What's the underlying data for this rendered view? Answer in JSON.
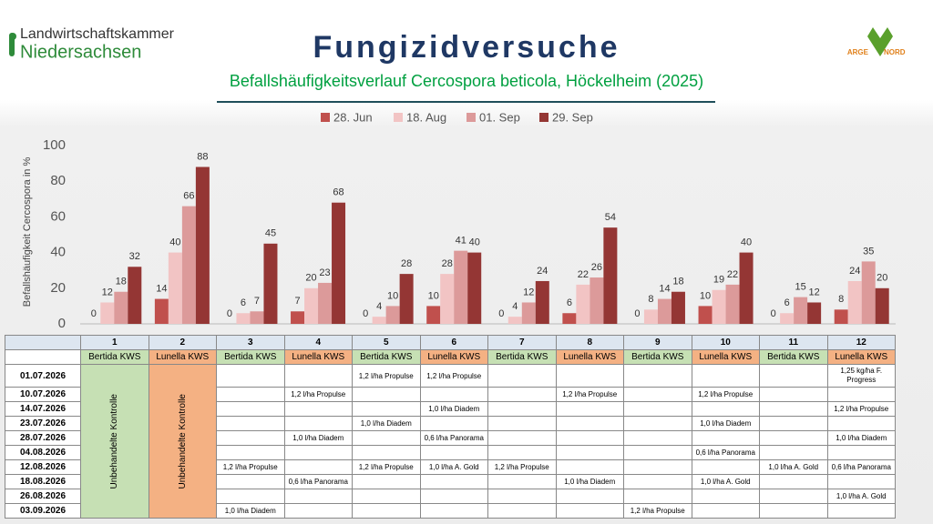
{
  "header": {
    "org_line1": "Landwirtschaftskammer",
    "org_line2": "Niedersachsen",
    "partner_line1": "ARGE",
    "partner_line2": "NORD"
  },
  "chart_data": {
    "type": "bar",
    "title": "Fungizidversuche",
    "subtitle": "Befallshäufigkeitsverlauf Cercospora beticola, Höckelheim (2025)",
    "y_label": "Befallshäufigkeit Cercospora in %",
    "categories": [
      "1",
      "2",
      "3",
      "4",
      "5",
      "6",
      "7",
      "8",
      "9",
      "10",
      "11",
      "12"
    ],
    "series": [
      {
        "name": "28. Jun",
        "color": "#c0504d",
        "values": [
          0,
          14,
          0,
          7,
          0,
          10,
          0,
          6,
          0,
          10,
          0,
          8
        ]
      },
      {
        "name": "18. Aug",
        "color": "#f2c4c4",
        "values": [
          12,
          40,
          6,
          20,
          4,
          28,
          4,
          22,
          8,
          19,
          6,
          24
        ]
      },
      {
        "name": "01. Sep",
        "color": "#dc9a9a",
        "values": [
          18,
          66,
          7,
          23,
          10,
          41,
          12,
          26,
          14,
          22,
          15,
          35
        ]
      },
      {
        "name": "29. Sep",
        "color": "#943634",
        "values": [
          32,
          88,
          45,
          68,
          28,
          40,
          24,
          54,
          18,
          40,
          12,
          20
        ]
      }
    ],
    "ylim": [
      0,
      100
    ],
    "yticks": [
      0,
      20,
      40,
      60,
      80,
      100
    ],
    "grid": false,
    "legend": "top"
  },
  "table": {
    "varieties": [
      "Bertida KWS",
      "Lunella KWS",
      "Bertida KWS",
      "Lunella KWS",
      "Bertida KWS",
      "Lunella KWS",
      "Bertida KWS",
      "Lunella KWS",
      "Bertida KWS",
      "Lunella KWS",
      "Bertida KWS",
      "Lunella KWS"
    ],
    "control": [
      "Unbehandelte Kontrolle",
      "Unbehandelte Kontrolle"
    ],
    "rows": [
      {
        "date": "01.07.2026",
        "cells": [
          null,
          null,
          "1,2 l/ha Propulse",
          "1,2 l/ha Propulse",
          null,
          null,
          null,
          null,
          null,
          "1,25 kg/ha F. Progress"
        ]
      },
      {
        "date": "10.07.2026",
        "cells": [
          null,
          "1,2 l/ha Propulse",
          null,
          null,
          null,
          "1,2 l/ha Propulse",
          null,
          "1,2 l/ha Propulse",
          null,
          null
        ]
      },
      {
        "date": "14.07.2026",
        "cells": [
          null,
          null,
          null,
          "1,0 l/ha Diadem",
          null,
          null,
          null,
          null,
          null,
          "1,2 l/ha Propulse"
        ]
      },
      {
        "date": "23.07.2026",
        "cells": [
          null,
          null,
          "1,0 l/ha Diadem",
          null,
          null,
          null,
          null,
          "1,0 l/ha Diadem",
          null,
          null
        ]
      },
      {
        "date": "28.07.2026",
        "cells": [
          null,
          "1,0 l/ha Diadem",
          null,
          "0,6 l/ha Panorama",
          null,
          null,
          null,
          null,
          null,
          "1,0 l/ha Diadem"
        ]
      },
      {
        "date": "04.08.2026",
        "cells": [
          null,
          null,
          null,
          null,
          null,
          null,
          null,
          "0,6 l/ha Panorama",
          null,
          null
        ]
      },
      {
        "date": "12.08.2026",
        "cells": [
          "1,2 l/ha Propulse",
          null,
          "1,2 l/ha Propulse",
          "1,0 l/ha A. Gold",
          "1,2 l/ha Propulse",
          null,
          null,
          null,
          "1,0 l/ha A. Gold",
          "0,6 l/ha Panorama"
        ]
      },
      {
        "date": "18.08.2026",
        "cells": [
          null,
          "0,6 l/ha Panorama",
          null,
          null,
          null,
          "1,0 l/ha Diadem",
          null,
          "1,0 l/ha A. Gold",
          null,
          null
        ]
      },
      {
        "date": "26.08.2026",
        "cells": [
          null,
          null,
          null,
          null,
          null,
          null,
          null,
          null,
          null,
          "1,0 l/ha A. Gold"
        ]
      },
      {
        "date": "03.09.2026",
        "cells": [
          "1,0 l/ha Diadem",
          null,
          null,
          null,
          null,
          null,
          "1,2 l/ha Propulse",
          null,
          null,
          null
        ]
      }
    ]
  }
}
